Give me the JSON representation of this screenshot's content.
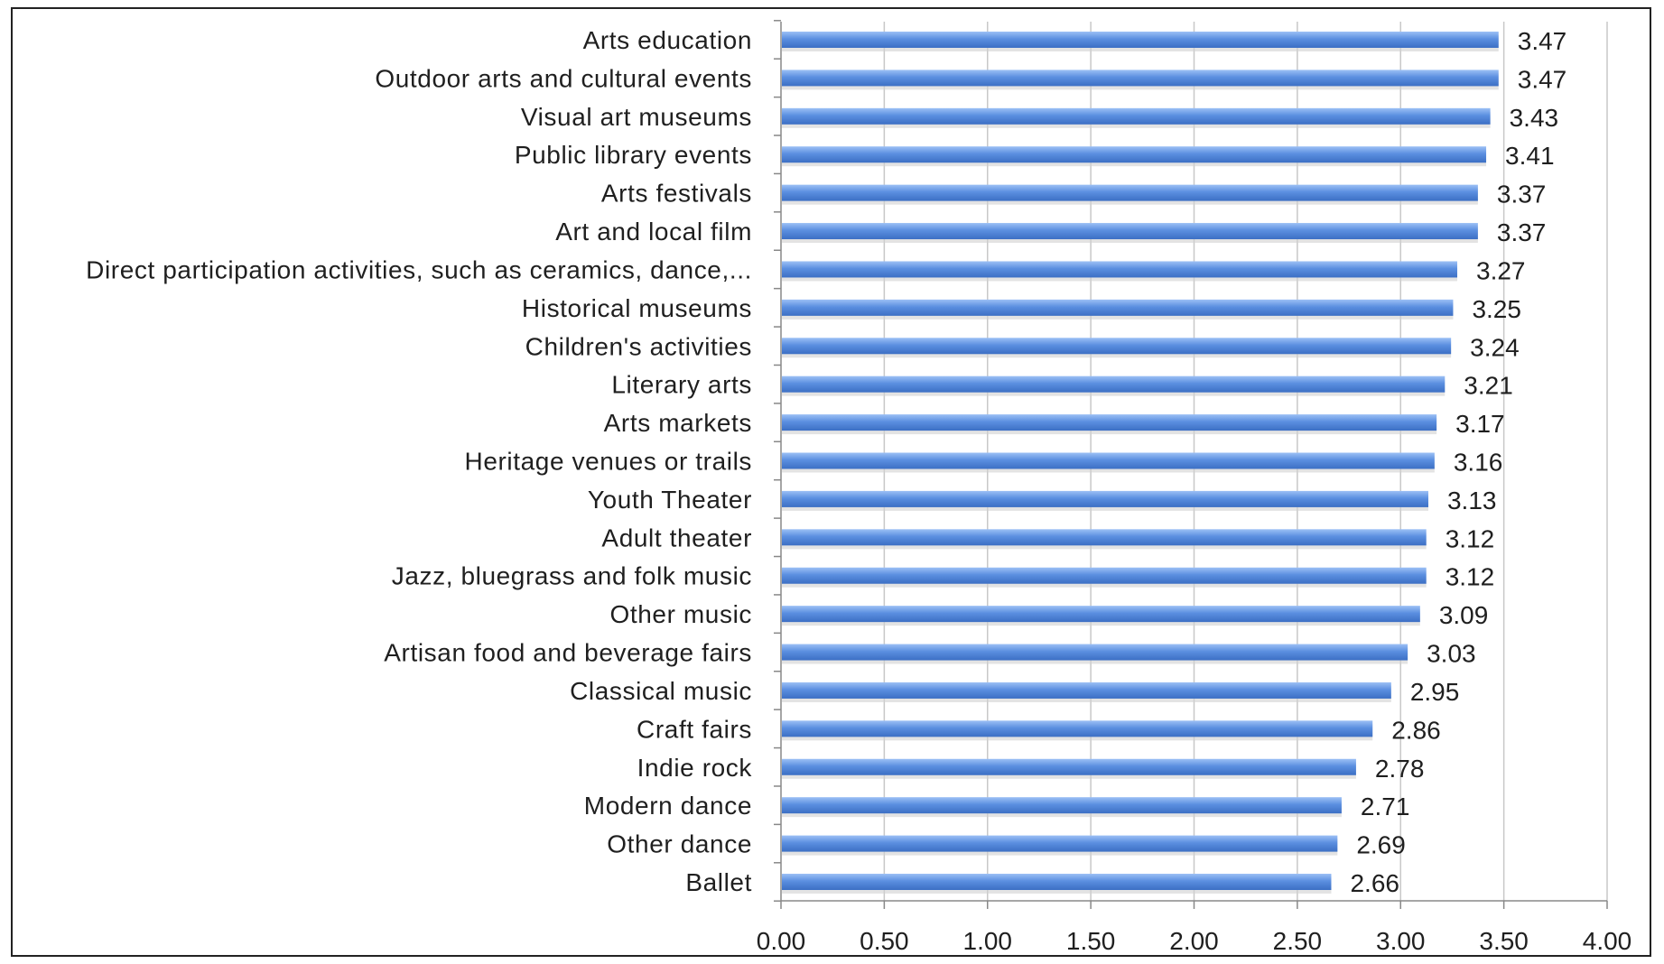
{
  "chart_data": {
    "type": "bar",
    "orientation": "horizontal",
    "title": "",
    "xlabel": "",
    "ylabel": "",
    "xlim": [
      0,
      4
    ],
    "x_ticks": [
      "0.00",
      "0.50",
      "1.00",
      "1.50",
      "2.00",
      "2.50",
      "3.00",
      "3.50",
      "4.00"
    ],
    "grid": "vertical",
    "legend": "none",
    "bar_color": "#5b8fe0",
    "categories": [
      "Arts education",
      "Outdoor arts and cultural events",
      "Visual art museums",
      "Public library events",
      "Arts festivals",
      "Art and local film",
      "Direct participation activities, such as ceramics, dance,...",
      "Historical museums",
      "Children's activities",
      "Literary arts",
      "Arts markets",
      "Heritage venues or trails",
      "Youth Theater",
      "Adult theater",
      "Jazz, bluegrass and folk music",
      "Other music",
      "Artisan food and beverage fairs",
      "Classical music",
      "Craft fairs",
      "Indie rock",
      "Modern dance",
      "Other dance",
      "Ballet"
    ],
    "values": [
      3.47,
      3.47,
      3.43,
      3.41,
      3.37,
      3.37,
      3.27,
      3.25,
      3.24,
      3.21,
      3.17,
      3.16,
      3.13,
      3.12,
      3.12,
      3.09,
      3.03,
      2.95,
      2.86,
      2.78,
      2.71,
      2.69,
      2.66
    ],
    "value_labels": [
      "3.47",
      "3.47",
      "3.43",
      "3.41",
      "3.37",
      "3.37",
      "3.27",
      "3.25",
      "3.24",
      "3.21",
      "3.17",
      "3.16",
      "3.13",
      "3.12",
      "3.12",
      "3.09",
      "3.03",
      "2.95",
      "2.86",
      "2.78",
      "2.71",
      "2.69",
      "2.66"
    ]
  }
}
